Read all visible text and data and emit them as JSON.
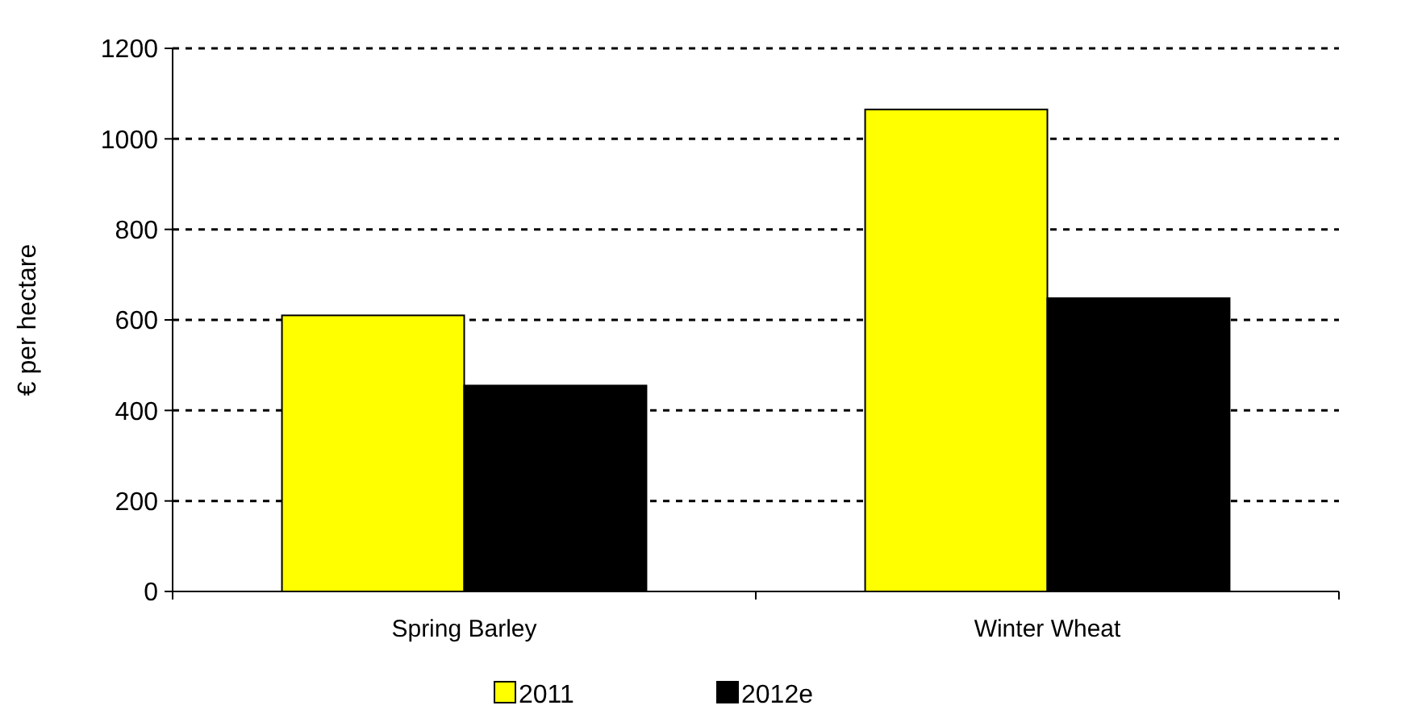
{
  "chart_data": {
    "type": "bar",
    "ylabel": "€ per hectare",
    "categories": [
      "Spring Barley",
      "Winter Wheat"
    ],
    "series": [
      {
        "name": "2011",
        "color": "#ffff00",
        "values": [
          610,
          1065
        ]
      },
      {
        "name": "2012e",
        "color": "#000000",
        "values": [
          455,
          648
        ]
      }
    ],
    "ylim": [
      0,
      1200
    ],
    "yticks": [
      0,
      200,
      400,
      600,
      800,
      1000,
      1200
    ],
    "grid": "y",
    "legend": "bottom"
  }
}
